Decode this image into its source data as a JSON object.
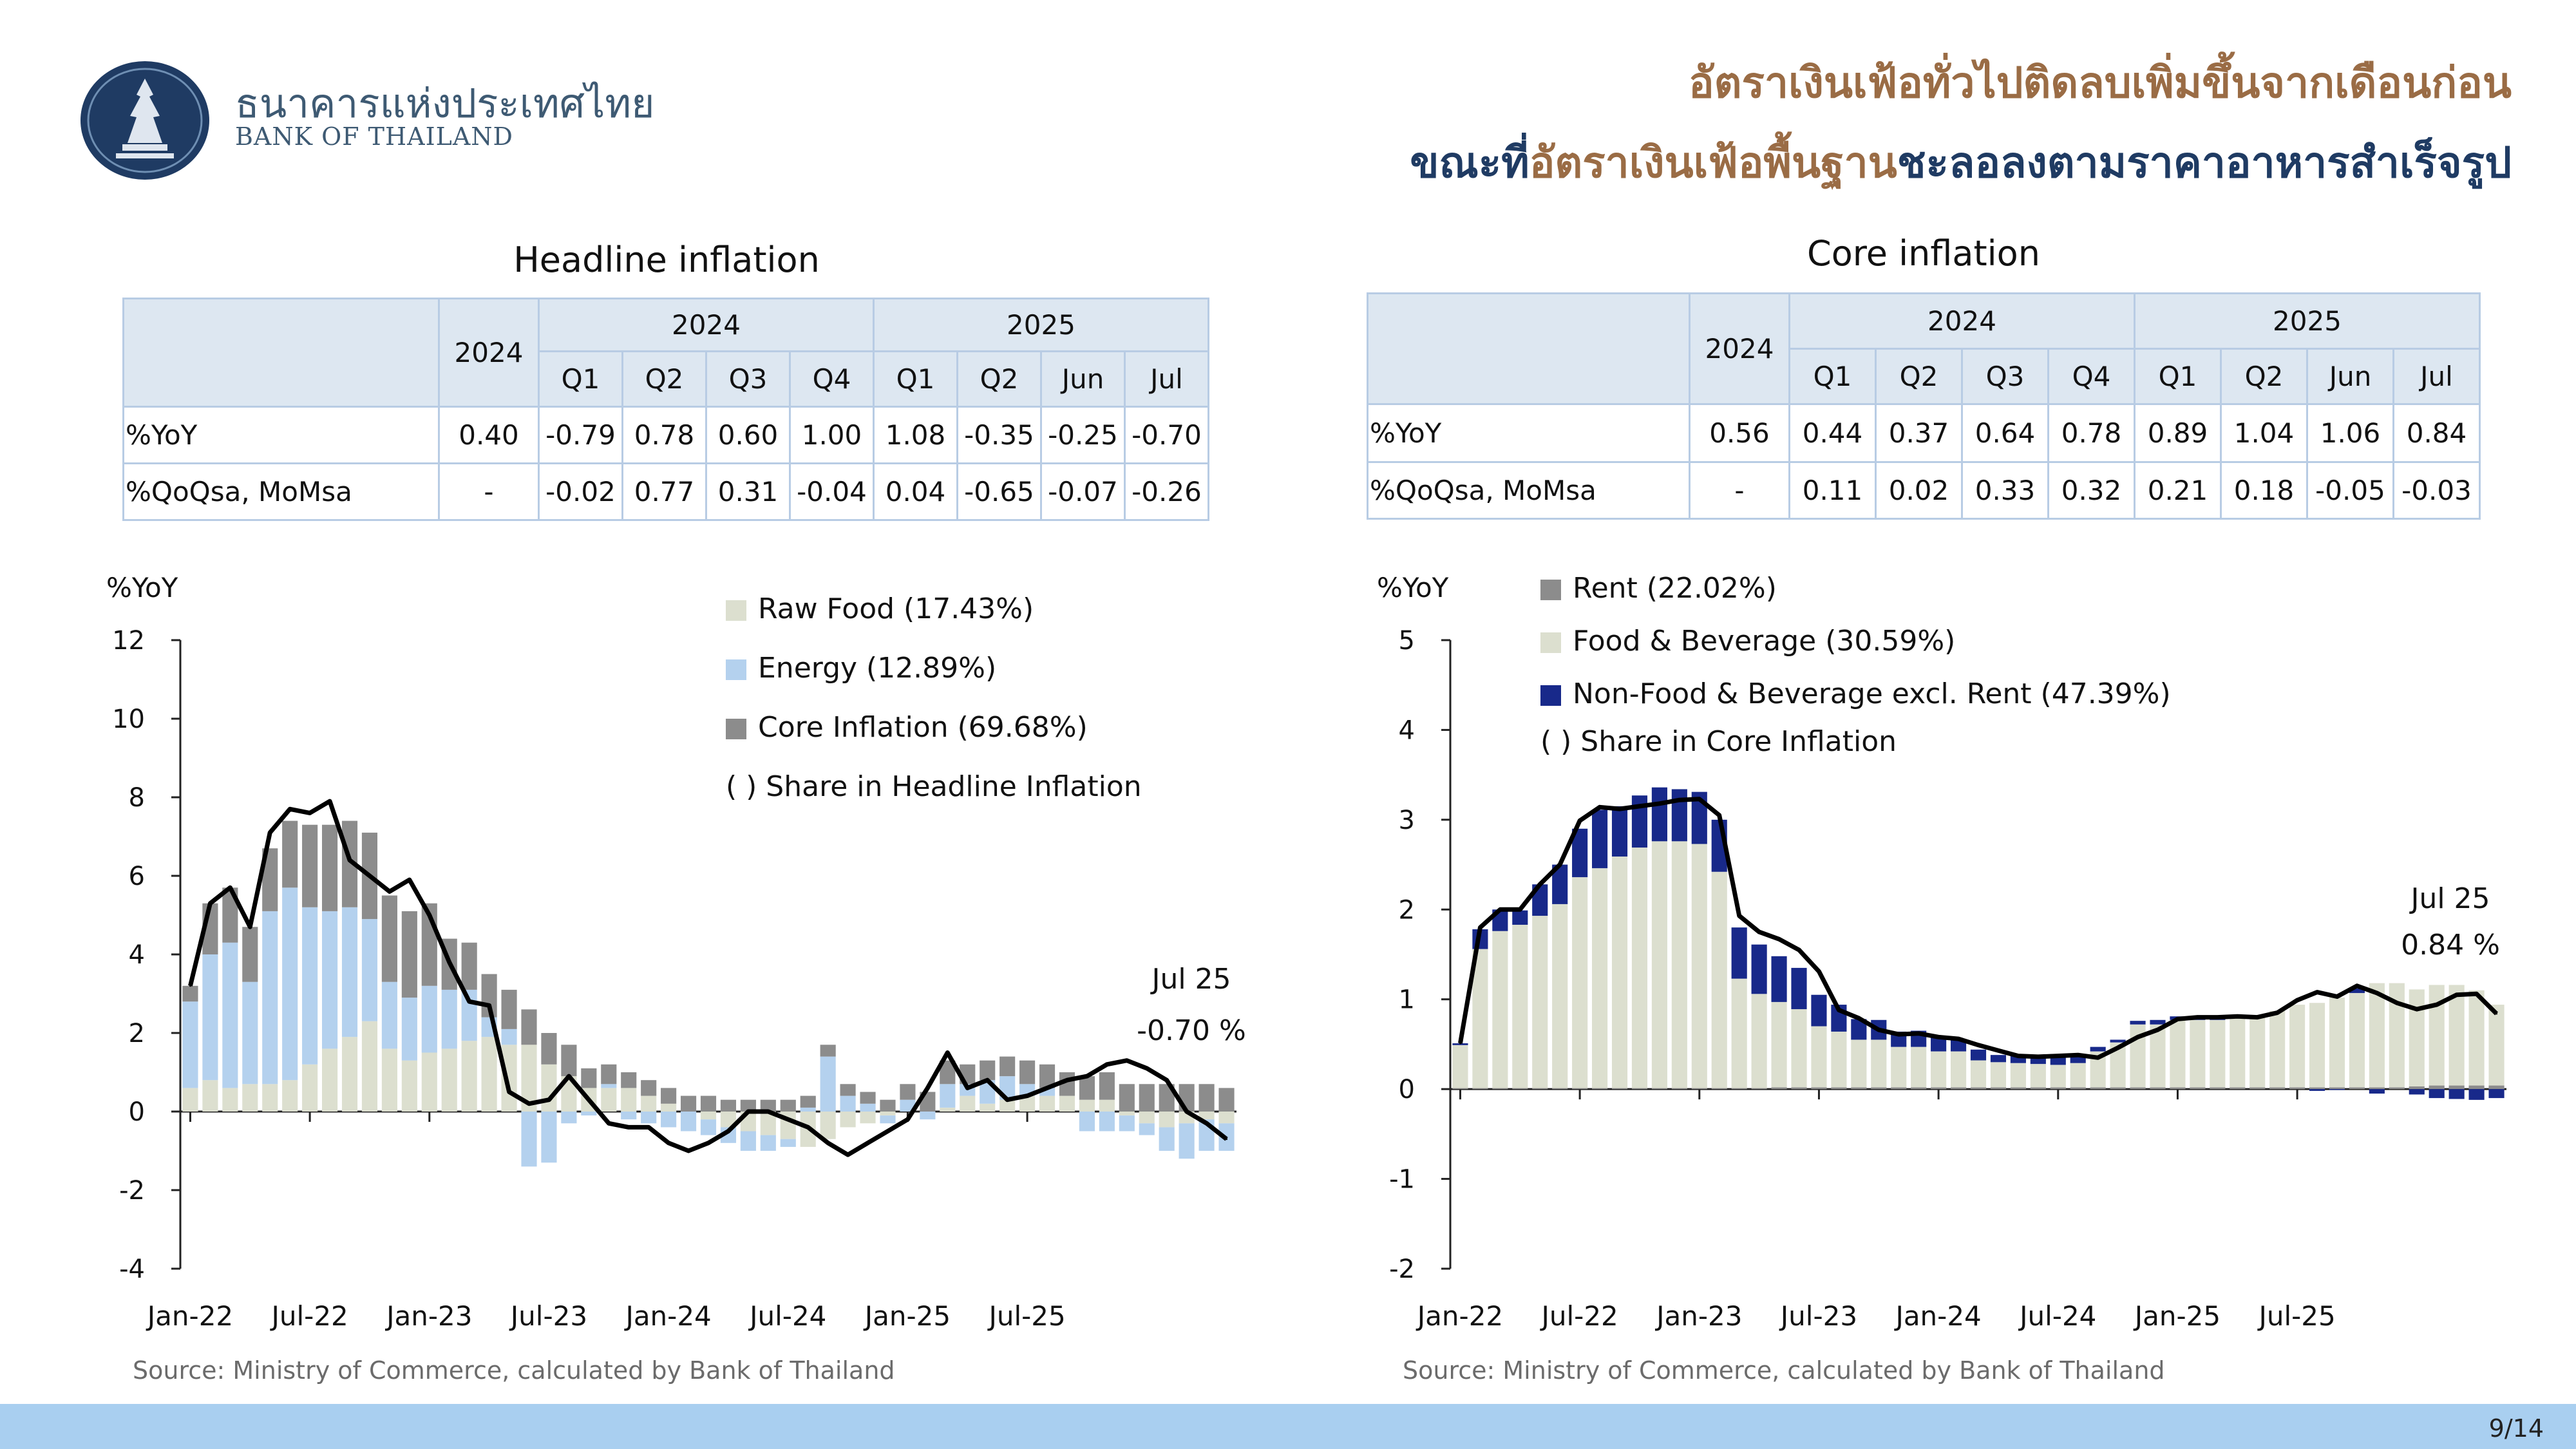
{
  "header": {
    "bank_name_th": "ธนาคารแห่งประเทศไทย",
    "bank_name_en": "BANK OF THAILAND",
    "title_line1": "อัตราเงินเฟ้อทั่วไปติดลบเพิ่มขึ้นจากเดือนก่อน",
    "title_line2_a": "ขณะที่",
    "title_line2_b": "อัตราเงินเฟ้อพื้นฐาน",
    "title_line2_c": "ชะลอลงตามราคาอาหารสำเร็จรูป"
  },
  "colors": {
    "raw_food": "#dcdfcf",
    "energy": "#b4d1ee",
    "core": "#8c8c8c",
    "rent": "#8c8c8c",
    "food_bev": "#dcdfcf",
    "nonfood": "#18298a",
    "line": "#000000",
    "title_tan": "#9a6c45",
    "title_navy": "#1f3b63",
    "table_border": "#b8cce4",
    "table_header_bg": "#dde7f1",
    "footer_band": "#a9cff0"
  },
  "headline": {
    "title": "Headline inflation",
    "table": {
      "year_col": "2024",
      "groups": [
        "2024",
        "2025"
      ],
      "periods": [
        "Q1",
        "Q2",
        "Q3",
        "Q4",
        "Q1",
        "Q2",
        "Jun",
        "Jul"
      ],
      "rows": [
        {
          "label": "%YoY",
          "values": [
            "0.40",
            "-0.79",
            "0.78",
            "0.60",
            "1.00",
            "1.08",
            "-0.35",
            "-0.25",
            "-0.70"
          ]
        },
        {
          "label": "%QoQsa, MoMsa",
          "values": [
            "-",
            "-0.02",
            "0.77",
            "0.31",
            "-0.04",
            "0.04",
            "-0.65",
            "-0.07",
            "-0.26"
          ]
        }
      ]
    },
    "source": "Source: Ministry of Commerce, calculated by Bank of Thailand"
  },
  "core": {
    "title": "Core inflation",
    "table": {
      "year_col": "2024",
      "groups": [
        "2024",
        "2025"
      ],
      "periods": [
        "Q1",
        "Q2",
        "Q3",
        "Q4",
        "Q1",
        "Q2",
        "Jun",
        "Jul"
      ],
      "rows": [
        {
          "label": "%YoY",
          "values": [
            "0.56",
            "0.44",
            "0.37",
            "0.64",
            "0.78",
            "0.89",
            "1.04",
            "1.06",
            "0.84"
          ]
        },
        {
          "label": "%QoQsa, MoMsa",
          "values": [
            "-",
            "0.11",
            "0.02",
            "0.33",
            "0.32",
            "0.21",
            "0.18",
            "-0.05",
            "-0.03"
          ]
        }
      ]
    },
    "source": "Source: Ministry of Commerce, calculated by Bank of Thailand"
  },
  "chart_data": [
    {
      "type": "bar",
      "stacked": true,
      "title": "Headline inflation",
      "ylabel": "%YoY",
      "ylim": [
        -4,
        12
      ],
      "yticks": [
        -4,
        -2,
        0,
        2,
        4,
        6,
        8,
        10,
        12
      ],
      "xtick_labels": [
        "Jan-22",
        "Jul-22",
        "Jan-23",
        "Jul-23",
        "Jan-24",
        "Jul-24",
        "Jan-25",
        "Jul-25"
      ],
      "legend_note": "( ) Share in Headline Inflation",
      "annotation": {
        "line1": "Jul 25",
        "line2": "-0.70 %"
      },
      "series": [
        {
          "name": "Raw Food (17.43%)",
          "key": "raw_food",
          "kind": "bar",
          "values": [
            0.6,
            0.8,
            0.6,
            0.7,
            0.7,
            0.8,
            1.2,
            1.6,
            1.9,
            2.3,
            1.6,
            1.3,
            1.5,
            1.6,
            1.8,
            1.9,
            1.7,
            1.7,
            1.2,
            0.9,
            0.6,
            0.6,
            0.6,
            0.4,
            0.2,
            0.0,
            -0.2,
            -0.4,
            -0.5,
            -0.6,
            -0.7,
            -0.9,
            -0.7,
            -0.4,
            -0.3,
            -0.1,
            0.0,
            0.0,
            0.1,
            0.4,
            0.2,
            0.3,
            0.4,
            0.4,
            0.4,
            0.3,
            0.3,
            -0.1,
            -0.3,
            -0.4,
            -0.3,
            -0.2,
            -0.3
          ]
        },
        {
          "name": "Energy (12.89%)",
          "key": "energy",
          "kind": "bar",
          "values": [
            2.2,
            3.2,
            3.7,
            2.6,
            4.4,
            4.9,
            4.0,
            3.5,
            3.3,
            2.6,
            1.7,
            1.6,
            1.7,
            1.5,
            1.3,
            0.5,
            0.4,
            -1.4,
            -1.3,
            -0.3,
            -0.1,
            0.1,
            -0.2,
            -0.3,
            -0.4,
            -0.5,
            -0.4,
            -0.4,
            -0.5,
            -0.4,
            -0.2,
            0.1,
            1.4,
            0.4,
            0.2,
            -0.2,
            0.3,
            -0.2,
            0.6,
            0.3,
            0.6,
            0.6,
            0.3,
            0.2,
            0.0,
            -0.5,
            -0.5,
            -0.4,
            -0.3,
            -0.6,
            -0.9,
            -0.8,
            -0.7
          ]
        },
        {
          "name": "Core Inflation (69.68%)",
          "key": "core",
          "kind": "bar",
          "values": [
            0.4,
            1.3,
            1.4,
            1.4,
            1.6,
            1.7,
            2.1,
            2.2,
            2.2,
            2.2,
            2.2,
            2.2,
            2.1,
            1.3,
            1.2,
            1.1,
            1.0,
            0.9,
            0.8,
            0.8,
            0.5,
            0.5,
            0.4,
            0.4,
            0.4,
            0.4,
            0.4,
            0.3,
            0.3,
            0.3,
            0.3,
            0.3,
            0.3,
            0.3,
            0.3,
            0.3,
            0.4,
            0.5,
            0.6,
            0.5,
            0.5,
            0.5,
            0.6,
            0.6,
            0.6,
            0.6,
            0.7,
            0.7,
            0.7,
            0.7,
            0.7,
            0.7,
            0.6
          ]
        },
        {
          "name": "Headline inflation",
          "key": "line",
          "kind": "line",
          "values": [
            3.2,
            5.3,
            5.7,
            4.7,
            7.1,
            7.7,
            7.6,
            7.9,
            6.4,
            6.0,
            5.6,
            5.9,
            5.0,
            3.8,
            2.8,
            2.7,
            0.5,
            0.2,
            0.3,
            0.9,
            0.3,
            -0.3,
            -0.4,
            -0.4,
            -0.8,
            -1.0,
            -0.8,
            -0.5,
            0.0,
            0.0,
            -0.2,
            -0.4,
            -0.8,
            -1.1,
            -0.8,
            -0.5,
            -0.2,
            0.6,
            1.5,
            0.6,
            0.8,
            0.3,
            0.4,
            0.6,
            0.8,
            0.9,
            1.2,
            1.3,
            1.1,
            0.8,
            0.0,
            -0.3,
            -0.7
          ]
        }
      ]
    },
    {
      "type": "bar",
      "stacked": true,
      "title": "Core inflation",
      "ylabel": "%YoY",
      "ylim": [
        -2,
        5
      ],
      "yticks": [
        -2,
        -1,
        0,
        1,
        2,
        3,
        4,
        5
      ],
      "xtick_labels": [
        "Jan-22",
        "Jul-22",
        "Jan-23",
        "Jul-23",
        "Jan-24",
        "Jul-24",
        "Jan-25",
        "Jul-25"
      ],
      "legend_note": "( ) Share in Core Inflation",
      "annotation": {
        "line1": "Jul 25",
        "line2": "0.84 %"
      },
      "series": [
        {
          "name": "Rent (22.02%)",
          "key": "rent",
          "kind": "bar",
          "values": [
            0.01,
            0.01,
            0.01,
            0.01,
            0.01,
            0.01,
            0.01,
            0.01,
            0.01,
            0.01,
            0.01,
            0.01,
            0.01,
            0.01,
            0.01,
            0.01,
            0.02,
            0.02,
            0.02,
            0.02,
            0.02,
            0.02,
            0.02,
            0.02,
            0.02,
            0.02,
            0.02,
            0.02,
            0.02,
            0.02,
            0.02,
            0.02,
            0.02,
            0.02,
            0.02,
            0.02,
            0.02,
            0.02,
            0.02,
            0.02,
            0.02,
            0.02,
            0.02,
            0.02,
            0.02,
            0.02,
            0.02,
            0.02,
            0.03,
            0.04,
            0.04,
            0.04,
            0.04
          ]
        },
        {
          "name": "Food & Beverage (30.59%)",
          "key": "food_bev",
          "kind": "bar",
          "values": [
            0.48,
            1.55,
            1.75,
            1.82,
            1.92,
            2.05,
            2.35,
            2.45,
            2.58,
            2.68,
            2.75,
            2.75,
            2.72,
            2.41,
            1.22,
            1.05,
            0.95,
            0.87,
            0.68,
            0.62,
            0.53,
            0.53,
            0.45,
            0.45,
            0.4,
            0.4,
            0.3,
            0.28,
            0.27,
            0.26,
            0.25,
            0.27,
            0.4,
            0.5,
            0.7,
            0.7,
            0.75,
            0.75,
            0.75,
            0.79,
            0.8,
            0.85,
            0.92,
            0.94,
            1.0,
            1.05,
            1.16,
            1.16,
            1.08,
            1.12,
            1.12,
            1.06,
            0.9
          ]
        },
        {
          "name": "Non-Food & Beverage excl. Rent (47.39%)",
          "key": "nonfood",
          "kind": "bar",
          "values": [
            0.02,
            0.22,
            0.24,
            0.16,
            0.35,
            0.44,
            0.54,
            0.65,
            0.56,
            0.58,
            0.6,
            0.58,
            0.58,
            0.58,
            0.57,
            0.55,
            0.51,
            0.46,
            0.35,
            0.3,
            0.23,
            0.22,
            0.17,
            0.18,
            0.16,
            0.14,
            0.12,
            0.08,
            0.09,
            0.09,
            0.12,
            0.08,
            0.05,
            0.03,
            0.04,
            0.05,
            0.04,
            0.03,
            0.02,
            0.01,
            0.0,
            0.0,
            0.0,
            -0.02,
            -0.01,
            0.05,
            -0.05,
            0.0,
            -0.06,
            -0.1,
            -0.11,
            -0.12,
            -0.1
          ]
        },
        {
          "name": "Core inflation",
          "key": "line",
          "kind": "line",
          "values": [
            0.51,
            1.8,
            2.0,
            2.0,
            2.28,
            2.5,
            2.99,
            3.14,
            3.12,
            3.15,
            3.18,
            3.22,
            3.23,
            3.05,
            1.93,
            1.75,
            1.67,
            1.55,
            1.31,
            0.88,
            0.79,
            0.66,
            0.61,
            0.62,
            0.58,
            0.56,
            0.49,
            0.43,
            0.37,
            0.36,
            0.37,
            0.38,
            0.35,
            0.46,
            0.58,
            0.66,
            0.78,
            0.8,
            0.8,
            0.81,
            0.8,
            0.85,
            0.99,
            1.08,
            1.03,
            1.15,
            1.07,
            0.96,
            0.89,
            0.94,
            1.05,
            1.06,
            0.84
          ]
        }
      ]
    }
  ],
  "footer": {
    "page": "9/14"
  }
}
